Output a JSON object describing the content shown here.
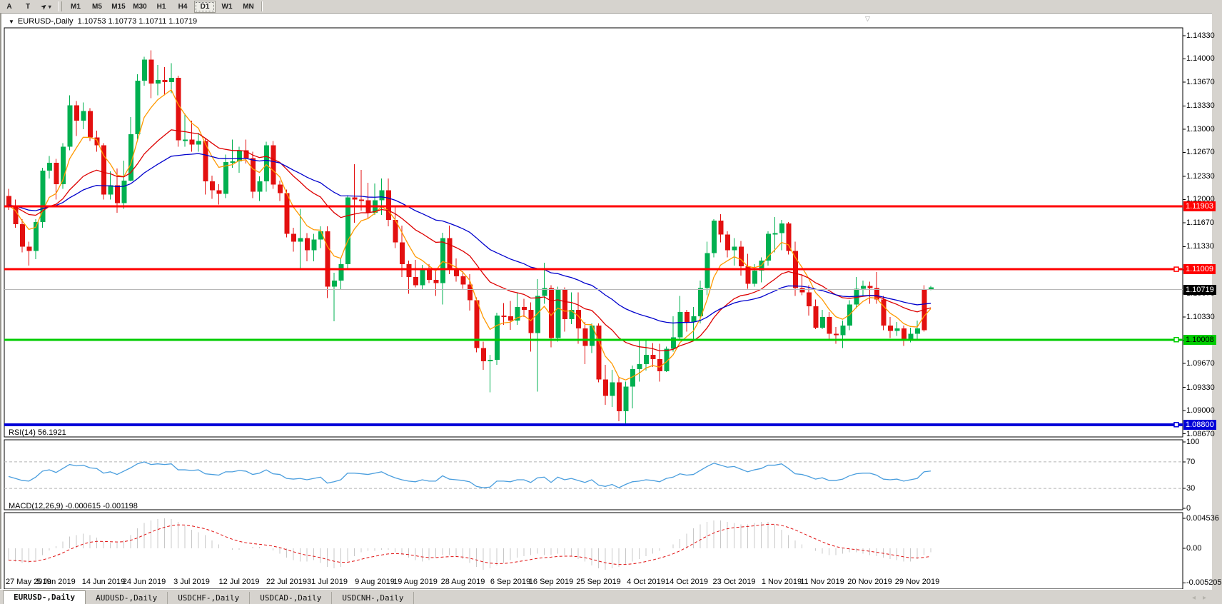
{
  "toolbar": {
    "tools": [
      {
        "label": "A"
      },
      {
        "label": "T"
      }
    ],
    "cursor_tool": {
      "glyph": "➤",
      "dropdown": "▾"
    },
    "timeframes": [
      {
        "label": "M1"
      },
      {
        "label": "M5"
      },
      {
        "label": "M15"
      },
      {
        "label": "M30"
      },
      {
        "label": "H1"
      },
      {
        "label": "H4"
      },
      {
        "label": "D1",
        "active": true
      },
      {
        "label": "W1"
      },
      {
        "label": "MN"
      }
    ]
  },
  "window": {
    "symbol": "EURUSD-,Daily",
    "ohlc": "1.10753 1.10773 1.10711 1.10719",
    "dropdown_glyph": "▼",
    "shift_marker_glyph": "▽"
  },
  "price_axis": {
    "ticks": [
      "1.14330",
      "1.14000",
      "1.13670",
      "1.13330",
      "1.13000",
      "1.12670",
      "1.12330",
      "1.12000",
      "1.11670",
      "1.11330",
      "1.11000",
      "1.10670",
      "1.10330",
      "1.10000",
      "1.09670",
      "1.09330",
      "1.09000",
      "1.08670"
    ]
  },
  "chart_data": {
    "type": "candlestick",
    "title": "EURUSD-,Daily",
    "symbol": "EURUSD",
    "timeframe": "D1",
    "ylim": [
      1.0863,
      1.1443
    ],
    "grid": false,
    "colors": {
      "bull": "#00b050",
      "bear": "#e31010",
      "ma_fast": "#ff9900",
      "ma_mid": "#dd0000",
      "ma_slow": "#0000cc",
      "line_red": "#ff0000",
      "line_green": "#00cc00",
      "line_blue": "#0000d8",
      "current": "#b8b8b8",
      "rsi_line": "#4a9ede",
      "macd_hist": "#c8c8c8",
      "macd_signal": "#e01010"
    },
    "moving_averages": [
      {
        "period": 6,
        "color": "#ff9900"
      },
      {
        "period": 20,
        "color": "#dd0000"
      },
      {
        "period": 40,
        "color": "#0000cc"
      }
    ],
    "hlines": [
      {
        "price": 1.11903,
        "label": "1.11903",
        "color": "#ff0000",
        "width": 3,
        "text_color": "#ffffff",
        "handle": false
      },
      {
        "price": 1.11009,
        "label": "1.11009",
        "color": "#ff0000",
        "width": 3,
        "text_color": "#ffffff",
        "handle": true
      },
      {
        "price": 1.10008,
        "label": "1.10008",
        "color": "#00cc00",
        "width": 3,
        "text_color": "#000000",
        "handle": true
      },
      {
        "price": 1.088,
        "label": "1.08800",
        "color": "#0000d8",
        "width": 4,
        "text_color": "#ffffff",
        "handle": true
      }
    ],
    "current_price": {
      "price": 1.10719,
      "label": "1.10719"
    },
    "candles": [
      [
        1.1205,
        1.1215,
        1.1185,
        1.1192
      ],
      [
        1.1192,
        1.12,
        1.116,
        1.1165
      ],
      [
        1.1165,
        1.1172,
        1.1125,
        1.1133
      ],
      [
        1.1133,
        1.114,
        1.1106,
        1.1127
      ],
      [
        1.1127,
        1.1172,
        1.1115,
        1.1168
      ],
      [
        1.1168,
        1.1245,
        1.116,
        1.1241
      ],
      [
        1.1241,
        1.1262,
        1.123,
        1.1252
      ],
      [
        1.1252,
        1.1258,
        1.12,
        1.1222
      ],
      [
        1.1222,
        1.128,
        1.1215,
        1.1275
      ],
      [
        1.1275,
        1.1348,
        1.127,
        1.1334
      ],
      [
        1.1334,
        1.134,
        1.129,
        1.1312
      ],
      [
        1.1312,
        1.1338,
        1.13,
        1.1326
      ],
      [
        1.1326,
        1.133,
        1.1283,
        1.1288
      ],
      [
        1.1288,
        1.1298,
        1.1268,
        1.1277
      ],
      [
        1.1277,
        1.128,
        1.12,
        1.1207
      ],
      [
        1.1207,
        1.124,
        1.12,
        1.122
      ],
      [
        1.122,
        1.1244,
        1.1181,
        1.1195
      ],
      [
        1.1195,
        1.1255,
        1.1187,
        1.1227
      ],
      [
        1.1227,
        1.1317,
        1.1226,
        1.1293
      ],
      [
        1.1293,
        1.1378,
        1.1285,
        1.1369
      ],
      [
        1.1369,
        1.1403,
        1.1362,
        1.1399
      ],
      [
        1.1399,
        1.1412,
        1.1344,
        1.1365
      ],
      [
        1.1365,
        1.1391,
        1.1348,
        1.137
      ],
      [
        1.137,
        1.1388,
        1.1348,
        1.1367
      ],
      [
        1.1367,
        1.1394,
        1.1351,
        1.1373
      ],
      [
        1.1373,
        1.1376,
        1.1275,
        1.1284
      ],
      [
        1.1284,
        1.1322,
        1.1275,
        1.1285
      ],
      [
        1.1285,
        1.1312,
        1.1268,
        1.1278
      ],
      [
        1.1278,
        1.1295,
        1.1268,
        1.1283
      ],
      [
        1.1283,
        1.1286,
        1.1207,
        1.1226
      ],
      [
        1.1226,
        1.1234,
        1.1201,
        1.1213
      ],
      [
        1.1213,
        1.1222,
        1.1193,
        1.1208
      ],
      [
        1.1208,
        1.1264,
        1.1202,
        1.1253
      ],
      [
        1.1253,
        1.1285,
        1.1245,
        1.1254
      ],
      [
        1.1254,
        1.1275,
        1.1238,
        1.127
      ],
      [
        1.127,
        1.1285,
        1.1251,
        1.1259
      ],
      [
        1.1259,
        1.1268,
        1.1202,
        1.1211
      ],
      [
        1.1211,
        1.1233,
        1.1198,
        1.1226
      ],
      [
        1.1226,
        1.1282,
        1.1211,
        1.1277
      ],
      [
        1.1277,
        1.1283,
        1.1215,
        1.1221
      ],
      [
        1.1221,
        1.1227,
        1.1198,
        1.1209
      ],
      [
        1.1209,
        1.1214,
        1.1146,
        1.1151
      ],
      [
        1.1151,
        1.116,
        1.1126,
        1.114
      ],
      [
        1.114,
        1.1187,
        1.1101,
        1.1145
      ],
      [
        1.1145,
        1.1152,
        1.1112,
        1.1128
      ],
      [
        1.1128,
        1.1151,
        1.1112,
        1.1143
      ],
      [
        1.1143,
        1.1162,
        1.1131,
        1.1155
      ],
      [
        1.1155,
        1.1162,
        1.106,
        1.1076
      ],
      [
        1.1076,
        1.1096,
        1.1027,
        1.1085
      ],
      [
        1.1085,
        1.1116,
        1.1072,
        1.1108
      ],
      [
        1.1108,
        1.1206,
        1.1101,
        1.1203
      ],
      [
        1.1203,
        1.125,
        1.1167,
        1.12
      ],
      [
        1.12,
        1.1242,
        1.1184,
        1.1199
      ],
      [
        1.1199,
        1.1224,
        1.1173,
        1.1181
      ],
      [
        1.1181,
        1.1223,
        1.1178,
        1.1199
      ],
      [
        1.1199,
        1.123,
        1.1178,
        1.1213
      ],
      [
        1.1213,
        1.123,
        1.1162,
        1.1171
      ],
      [
        1.1171,
        1.1192,
        1.1131,
        1.1139
      ],
      [
        1.1139,
        1.1163,
        1.109,
        1.1108
      ],
      [
        1.1108,
        1.1113,
        1.1066,
        1.109
      ],
      [
        1.109,
        1.1114,
        1.1075,
        1.1078
      ],
      [
        1.1078,
        1.1107,
        1.1072,
        1.11
      ],
      [
        1.11,
        1.1108,
        1.1081,
        1.1086
      ],
      [
        1.1086,
        1.1098,
        1.1063,
        1.1081
      ],
      [
        1.1081,
        1.1153,
        1.1051,
        1.1145
      ],
      [
        1.1145,
        1.1163,
        1.1094,
        1.1101
      ],
      [
        1.1101,
        1.1116,
        1.1083,
        1.1091
      ],
      [
        1.1091,
        1.1098,
        1.1073,
        1.1079
      ],
      [
        1.1079,
        1.1094,
        1.1042,
        1.1057
      ],
      [
        1.1057,
        1.1061,
        1.0983,
        1.0989
      ],
      [
        1.0989,
        1.0998,
        1.0958,
        1.097
      ],
      [
        1.097,
        1.0979,
        1.0926,
        1.0972
      ],
      [
        1.0972,
        1.1039,
        1.0965,
        1.1035
      ],
      [
        1.1035,
        1.1053,
        1.1022,
        1.1034
      ],
      [
        1.1034,
        1.1056,
        1.1015,
        1.1028
      ],
      [
        1.1028,
        1.1067,
        1.1022,
        1.1047
      ],
      [
        1.1047,
        1.1059,
        1.1033,
        1.1043
      ],
      [
        1.1043,
        1.1054,
        1.0984,
        1.101
      ],
      [
        1.101,
        1.1087,
        1.0927,
        1.1063
      ],
      [
        1.1063,
        1.111,
        1.1052,
        1.1074
      ],
      [
        1.1074,
        1.1078,
        1.099,
        1.1003
      ],
      [
        1.1003,
        1.1076,
        1.0998,
        1.1072
      ],
      [
        1.1072,
        1.1075,
        1.1012,
        1.103
      ],
      [
        1.103,
        1.1068,
        1.1023,
        1.1043
      ],
      [
        1.1043,
        1.1068,
        1.0995,
        1.1017
      ],
      [
        1.1017,
        1.1026,
        1.0966,
        1.0992
      ],
      [
        1.0992,
        1.1024,
        1.0982,
        1.1021
      ],
      [
        1.1021,
        1.1024,
        1.094,
        1.0944
      ],
      [
        1.0944,
        1.0965,
        1.0908,
        1.0921
      ],
      [
        1.0921,
        1.0958,
        1.0905,
        1.094
      ],
      [
        1.094,
        1.0947,
        1.0885,
        1.0899
      ],
      [
        1.0899,
        1.0941,
        1.0879,
        1.0934
      ],
      [
        1.0934,
        1.0964,
        1.0903,
        1.0959
      ],
      [
        1.0959,
        1.0999,
        1.0941,
        1.0966
      ],
      [
        1.0966,
        1.0999,
        1.0957,
        1.0979
      ],
      [
        1.0979,
        1.0996,
        1.0962,
        1.0973
      ],
      [
        1.0973,
        1.0995,
        1.0941,
        1.0956
      ],
      [
        1.0956,
        1.0991,
        1.0955,
        1.0988
      ],
      [
        1.0988,
        1.1034,
        1.0984,
        1.1004
      ],
      [
        1.1004,
        1.1063,
        1.1002,
        1.104
      ],
      [
        1.104,
        1.1043,
        1.1012,
        1.1026
      ],
      [
        1.1026,
        1.1047,
        1.1001,
        1.1034
      ],
      [
        1.1034,
        1.1085,
        1.1024,
        1.1074
      ],
      [
        1.1074,
        1.114,
        1.1064,
        1.1124
      ],
      [
        1.1124,
        1.1172,
        1.1118,
        1.117
      ],
      [
        1.117,
        1.1179,
        1.1139,
        1.115
      ],
      [
        1.115,
        1.1155,
        1.1118,
        1.1128
      ],
      [
        1.1128,
        1.1145,
        1.1106,
        1.1133
      ],
      [
        1.1133,
        1.1141,
        1.1092,
        1.1105
      ],
      [
        1.1105,
        1.1123,
        1.1073,
        1.108
      ],
      [
        1.108,
        1.1108,
        1.1076,
        1.1099
      ],
      [
        1.1099,
        1.1118,
        1.1082,
        1.1113
      ],
      [
        1.1113,
        1.1155,
        1.1106,
        1.1151
      ],
      [
        1.1151,
        1.1175,
        1.1125,
        1.1152
      ],
      [
        1.1152,
        1.1171,
        1.1128,
        1.1166
      ],
      [
        1.1166,
        1.1168,
        1.1122,
        1.1127
      ],
      [
        1.1127,
        1.114,
        1.1063,
        1.1074
      ],
      [
        1.1074,
        1.1094,
        1.1064,
        1.1068
      ],
      [
        1.1068,
        1.1078,
        1.1035,
        1.1048
      ],
      [
        1.1048,
        1.1058,
        1.1016,
        1.1018
      ],
      [
        1.1018,
        1.1043,
        1.1016,
        1.1033
      ],
      [
        1.1033,
        1.104,
        1.1002,
        1.1009
      ],
      [
        1.1009,
        1.1019,
        1.0995,
        1.1007
      ],
      [
        1.1007,
        1.1028,
        1.0989,
        1.1021
      ],
      [
        1.1021,
        1.1057,
        1.1014,
        1.1051
      ],
      [
        1.1051,
        1.109,
        1.1045,
        1.1073
      ],
      [
        1.1073,
        1.1085,
        1.1062,
        1.1077
      ],
      [
        1.1077,
        1.1083,
        1.1052,
        1.1074
      ],
      [
        1.1074,
        1.1097,
        1.1052,
        1.1058
      ],
      [
        1.1058,
        1.1063,
        1.1014,
        1.1021
      ],
      [
        1.1021,
        1.1033,
        1.1003,
        1.1013
      ],
      [
        1.1013,
        1.1026,
        1.1006,
        1.1017
      ],
      [
        1.1017,
        1.1021,
        1.0992,
        1.1002
      ],
      [
        1.1002,
        1.1018,
        1.0997,
        1.1009
      ],
      [
        1.1009,
        1.1028,
        1.1002,
        1.1017
      ],
      [
        1.1014,
        1.1078,
        1.1012,
        1.1072,
        "r"
      ],
      [
        1.10753,
        1.10773,
        1.10711,
        1.10719,
        "g"
      ]
    ]
  },
  "rsi": {
    "name": "RSI(14)",
    "value": "56.1921",
    "axis_labels": [
      "100",
      "70",
      "30",
      "0"
    ],
    "axis_values": [
      100,
      70,
      30,
      0
    ],
    "dashed_levels": [
      70,
      30
    ],
    "values": [
      48,
      45,
      42,
      41,
      47,
      56,
      58,
      54,
      60,
      66,
      64,
      65,
      61,
      60,
      53,
      55,
      51,
      56,
      61,
      67,
      70,
      66,
      67,
      66,
      67,
      58,
      58,
      57,
      58,
      52,
      51,
      50,
      55,
      55,
      57,
      56,
      51,
      53,
      58,
      52,
      51,
      45,
      44,
      45,
      43,
      45,
      47,
      38,
      40,
      43,
      53,
      53,
      52,
      51,
      53,
      55,
      50,
      46,
      43,
      41,
      40,
      43,
      41,
      41,
      49,
      44,
      43,
      42,
      40,
      33,
      31,
      32,
      41,
      41,
      40,
      43,
      43,
      39,
      46,
      47,
      39,
      47,
      43,
      45,
      42,
      39,
      43,
      35,
      33,
      36,
      31,
      36,
      40,
      41,
      43,
      42,
      40,
      45,
      47,
      52,
      50,
      51,
      57,
      63,
      68,
      65,
      62,
      63,
      59,
      55,
      58,
      60,
      65,
      65,
      67,
      60,
      52,
      51,
      48,
      44,
      46,
      42,
      42,
      44,
      49,
      52,
      53,
      53,
      50,
      44,
      43,
      44,
      41,
      43,
      45,
      55,
      56.19
    ]
  },
  "macd": {
    "name": "MACD(12,26,9)",
    "macd_value": "-0.000615",
    "signal_value": "-0.001198",
    "axis_labels": [
      "0.004536",
      "0.00",
      "-0.005205"
    ],
    "axis_values": [
      0.004536,
      0,
      -0.005205
    ],
    "signal_period": 9,
    "values": [
      -0.0018,
      -0.002,
      -0.0022,
      -0.0022,
      -0.0018,
      -0.001,
      -0.0003,
      0.0003,
      0.001,
      0.0018,
      0.002,
      0.0022,
      0.002,
      0.0016,
      0.001,
      0.0008,
      0.0008,
      0.0012,
      0.002,
      0.003,
      0.0038,
      0.0042,
      0.0044,
      0.0045,
      0.0044,
      0.004,
      0.0034,
      0.0028,
      0.0024,
      0.002,
      0.0012,
      0.0006,
      0.0,
      -0.0002,
      -0.0002,
      0.0,
      0.0002,
      0.0002,
      0.0,
      -0.0003,
      -0.0008,
      -0.0014,
      -0.0018,
      -0.002,
      -0.002,
      -0.0018,
      -0.0022,
      -0.0028,
      -0.003,
      -0.0028,
      -0.002,
      -0.0012,
      -0.0006,
      -0.0004,
      -0.0004,
      -0.0002,
      -0.0002,
      -0.0006,
      -0.001,
      -0.0014,
      -0.0018,
      -0.002,
      -0.0018,
      -0.0014,
      -0.001,
      -0.001,
      -0.0012,
      -0.0016,
      -0.0022,
      -0.0028,
      -0.0032,
      -0.003,
      -0.0026,
      -0.0022,
      -0.0018,
      -0.0014,
      -0.0012,
      -0.001,
      -0.0008,
      -0.001,
      -0.001,
      -0.0008,
      -0.001,
      -0.0012,
      -0.0016,
      -0.002,
      -0.0026,
      -0.003,
      -0.0032,
      -0.003,
      -0.0028,
      -0.0024,
      -0.002,
      -0.0016,
      -0.0012,
      -0.0008,
      -0.0004,
      0.0,
      0.0006,
      0.0014,
      0.0022,
      0.003,
      0.0036,
      0.004,
      0.0042,
      0.0042,
      0.004,
      0.0038,
      0.0036,
      0.0036,
      0.0038,
      0.004,
      0.004,
      0.0036,
      0.0028,
      0.002,
      0.0012,
      0.0006,
      0.0,
      -0.0004,
      -0.0008,
      -0.001,
      -0.001,
      -0.0008,
      -0.0006,
      -0.0006,
      -0.0008,
      -0.001,
      -0.0012,
      -0.0014,
      -0.0016,
      -0.0018,
      -0.002,
      -0.002,
      -0.0016,
      -0.001,
      -0.000615
    ]
  },
  "date_axis": {
    "labels": [
      {
        "text": "27 May 2019",
        "i": 0
      },
      {
        "text": "5 Jun 2019",
        "i": 7
      },
      {
        "text": "14 Jun 2019",
        "i": 14
      },
      {
        "text": "24 Jun 2019",
        "i": 20
      },
      {
        "text": "3 Jul 2019",
        "i": 27
      },
      {
        "text": "12 Jul 2019",
        "i": 34
      },
      {
        "text": "22 Jul 2019",
        "i": 41
      },
      {
        "text": "31 Jul 2019",
        "i": 47
      },
      {
        "text": "9 Aug 2019",
        "i": 54
      },
      {
        "text": "19 Aug 2019",
        "i": 60
      },
      {
        "text": "28 Aug 2019",
        "i": 67
      },
      {
        "text": "6 Sep 2019",
        "i": 74
      },
      {
        "text": "16 Sep 2019",
        "i": 80
      },
      {
        "text": "25 Sep 2019",
        "i": 87
      },
      {
        "text": "4 Oct 2019",
        "i": 94
      },
      {
        "text": "14 Oct 2019",
        "i": 100
      },
      {
        "text": "23 Oct 2019",
        "i": 107
      },
      {
        "text": "1 Nov 2019",
        "i": 114
      },
      {
        "text": "11 Nov 2019",
        "i": 120
      },
      {
        "text": "20 Nov 2019",
        "i": 127
      },
      {
        "text": "29 Nov 2019",
        "i": 134
      }
    ]
  },
  "tabs": {
    "items": [
      {
        "label": "EURUSD-,Daily",
        "active": true
      },
      {
        "label": "AUDUSD-,Daily"
      },
      {
        "label": "USDCHF-,Daily"
      },
      {
        "label": "USDCAD-,Daily"
      },
      {
        "label": "USDCNH-,Daily"
      }
    ],
    "scroll_left": "◂",
    "scroll_right": "▸"
  }
}
